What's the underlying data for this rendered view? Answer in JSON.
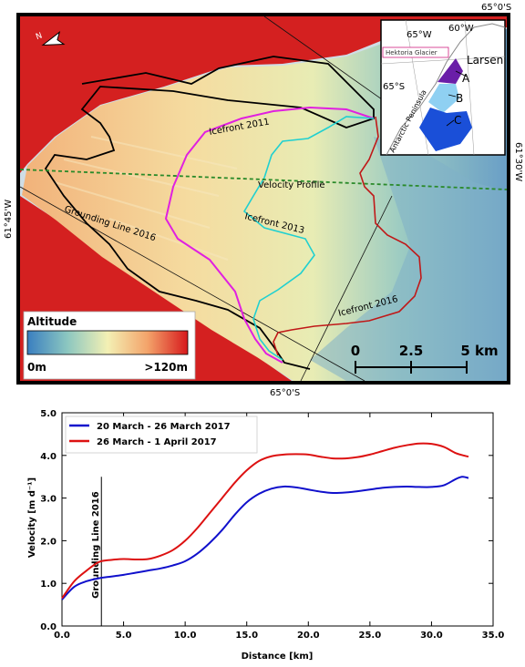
{
  "map": {
    "coord_labels": {
      "top_right": "65°0'S",
      "bottom": "65°0'S",
      "left": "61°45'W",
      "right": "61°30'W"
    },
    "annotations": {
      "icefront_2011": "Icefront 2011",
      "icefront_2013": "Icefront 2013",
      "icefront_2016": "Icefront 2016",
      "grounding_line": "Grounding Line 2016",
      "velocity_profile": "Velocity Profile"
    },
    "colorbar": {
      "title": "Altitude",
      "min_label": "0m",
      "max_label": ">120m"
    },
    "scalebar": {
      "labels": [
        "0",
        "2.5",
        "5 km"
      ]
    },
    "inset": {
      "labels": {
        "lon_65": "65°W",
        "lon_60": "60°W",
        "lat_65": "65°S",
        "glacier": "Hektoria Glacier",
        "shelf": "Larsen",
        "peninsula": "Antarctic Peninsula",
        "a": "A",
        "b": "B",
        "c": "C"
      }
    }
  },
  "chart_data": {
    "type": "line",
    "xlabel": "Distance [km]",
    "ylabel": "Velocity [m d⁻¹]",
    "xlim": [
      0,
      35
    ],
    "ylim": [
      0,
      5
    ],
    "xticks": [
      "0.0",
      "5.0",
      "10.0",
      "15.0",
      "20.0",
      "25.0",
      "30.0",
      "35.0"
    ],
    "yticks": [
      "0.0",
      "1.0",
      "2.0",
      "3.0",
      "4.0",
      "5.0"
    ],
    "grid": false,
    "legend_position": "top-left",
    "annotation": {
      "text": "Grounding Line 2016",
      "x": 3.2
    },
    "series": [
      {
        "name": "20 March - 26 March 2017",
        "color": "#1010cc",
        "x": [
          0,
          1,
          2,
          3,
          4,
          5,
          6,
          7,
          8,
          9,
          10,
          11,
          12,
          13,
          14,
          15,
          16,
          17,
          18,
          19,
          20,
          21,
          22,
          23,
          24,
          25,
          26,
          27,
          28,
          29,
          30,
          31,
          32,
          32.5,
          33
        ],
        "y": [
          0.62,
          0.92,
          1.05,
          1.12,
          1.16,
          1.2,
          1.25,
          1.3,
          1.35,
          1.42,
          1.52,
          1.7,
          1.95,
          2.25,
          2.6,
          2.9,
          3.1,
          3.22,
          3.27,
          3.25,
          3.2,
          3.15,
          3.12,
          3.13,
          3.16,
          3.2,
          3.24,
          3.26,
          3.27,
          3.26,
          3.26,
          3.3,
          3.45,
          3.5,
          3.47
        ]
      },
      {
        "name": "26 March - 1 April 2017",
        "color": "#dd1111",
        "x": [
          0,
          1,
          2,
          3,
          4,
          5,
          6,
          7,
          8,
          9,
          10,
          11,
          12,
          13,
          14,
          15,
          16,
          17,
          18,
          19,
          20,
          21,
          22,
          23,
          24,
          25,
          26,
          27,
          28,
          29,
          30,
          31,
          32,
          33
        ],
        "y": [
          0.65,
          1.05,
          1.3,
          1.5,
          1.55,
          1.57,
          1.56,
          1.57,
          1.65,
          1.78,
          2.0,
          2.3,
          2.65,
          3.0,
          3.35,
          3.65,
          3.87,
          3.98,
          4.02,
          4.03,
          4.02,
          3.97,
          3.93,
          3.93,
          3.96,
          4.02,
          4.1,
          4.18,
          4.24,
          4.28,
          4.27,
          4.2,
          4.05,
          3.97
        ]
      }
    ]
  }
}
